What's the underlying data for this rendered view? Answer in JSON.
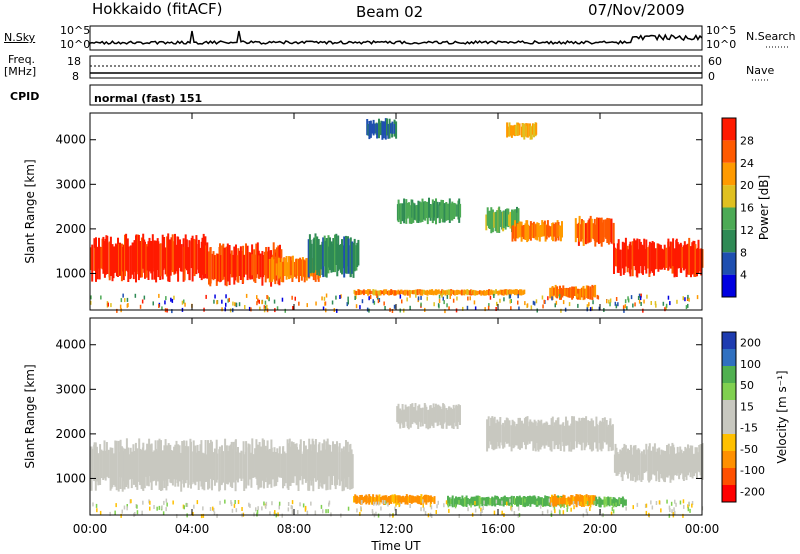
{
  "header": {
    "station": "Hokkaido (fitACF)",
    "beam": "Beam 02",
    "date": "07/Nov/2009"
  },
  "strip_labels": {
    "nsky": "N.Sky",
    "nsky_ticks": [
      "10^5",
      "10^0"
    ],
    "nsearch": "N.Search",
    "nsearch_ticks": [
      "10^5",
      "10^0"
    ],
    "freq": "Freq.",
    "freq_unit": "[MHz]",
    "freq_ticks": [
      "18",
      "8"
    ],
    "nave": "Nave",
    "nave_ticks": [
      "60",
      "0"
    ],
    "cpid": "CPID",
    "cpid_value": "normal (fast) 151"
  },
  "colors": {
    "power_scale": [
      "#0000e0",
      "#1e4fb0",
      "#2f8a55",
      "#4caa55",
      "#e0c020",
      "#ff9a00",
      "#ff5a00",
      "#ff1a00"
    ],
    "velocity_scale": [
      "#ff0000",
      "#ff5000",
      "#ff9000",
      "#ffc000",
      "#c8c8c0",
      "#c8c8c0",
      "#80d050",
      "#50b050",
      "#3070c0",
      "#1e3cb0"
    ]
  },
  "chart_data": [
    {
      "type": "heatmap",
      "name": "power",
      "ylabel": "Slant Range [km]",
      "yticks": [
        1000,
        2000,
        3000,
        4000
      ],
      "ylim": [
        180,
        4600
      ],
      "xlim_hours": [
        0,
        24
      ],
      "colorbar_label": "Power [dB]",
      "colorbar_ticks": [
        4,
        8,
        12,
        16,
        20,
        24,
        28
      ],
      "colorbar_range": [
        0,
        32
      ],
      "patches": [
        {
          "t0": 0.0,
          "t1": 4.5,
          "r0": 800,
          "r1": 1900,
          "level": 30
        },
        {
          "t0": 4.5,
          "t1": 7.5,
          "r0": 700,
          "r1": 1700,
          "level": 28
        },
        {
          "t0": 7.0,
          "t1": 9.0,
          "r0": 800,
          "r1": 1400,
          "level": 24
        },
        {
          "t0": 8.5,
          "t1": 10.5,
          "r0": 900,
          "r1": 1900,
          "level": 10
        },
        {
          "t0": 10.3,
          "t1": 17.0,
          "r0": 500,
          "r1": 650,
          "level": 22
        },
        {
          "t0": 12.0,
          "t1": 14.5,
          "r0": 2100,
          "r1": 2700,
          "level": 12
        },
        {
          "t0": 15.5,
          "t1": 16.8,
          "r0": 1900,
          "r1": 2500,
          "level": 14
        },
        {
          "t0": 16.5,
          "t1": 18.5,
          "r0": 1700,
          "r1": 2200,
          "level": 24
        },
        {
          "t0": 18.0,
          "t1": 19.8,
          "r0": 400,
          "r1": 750,
          "level": 24
        },
        {
          "t0": 19.0,
          "t1": 20.5,
          "r0": 1600,
          "r1": 2300,
          "level": 26
        },
        {
          "t0": 20.5,
          "t1": 24.0,
          "r0": 900,
          "r1": 1800,
          "level": 30
        },
        {
          "t0": 10.8,
          "t1": 12.0,
          "r0": 4000,
          "r1": 4500,
          "level": 8
        },
        {
          "t0": 16.3,
          "t1": 17.5,
          "r0": 4000,
          "r1": 4400,
          "level": 20
        }
      ]
    },
    {
      "type": "heatmap",
      "name": "velocity",
      "ylabel": "Slant Range [km]",
      "yticks": [
        1000,
        2000,
        3000,
        4000
      ],
      "ylim": [
        180,
        4600
      ],
      "xlim_hours": [
        0,
        24
      ],
      "xticks": [
        "00:00",
        "04:00",
        "08:00",
        "12:00",
        "16:00",
        "20:00",
        "00:00"
      ],
      "xlabel": "Time UT",
      "colorbar_label": "Velocity [m s⁻¹]",
      "colorbar_ticks": [
        200,
        100,
        50,
        15,
        -15,
        -50,
        -100,
        -200
      ],
      "patches": [
        {
          "t0": 0.0,
          "t1": 10.3,
          "r0": 700,
          "r1": 1900,
          "vel": 0
        },
        {
          "t0": 10.3,
          "t1": 13.5,
          "r0": 400,
          "r1": 650,
          "vel": -60
        },
        {
          "t0": 12.0,
          "t1": 14.5,
          "r0": 2100,
          "r1": 2700,
          "vel": 0
        },
        {
          "t0": 14.0,
          "t1": 18.5,
          "r0": 350,
          "r1": 620,
          "vel": 60
        },
        {
          "t0": 18.0,
          "t1": 19.8,
          "r0": 350,
          "r1": 650,
          "vel": -60
        },
        {
          "t0": 19.8,
          "t1": 21.0,
          "r0": 350,
          "r1": 600,
          "vel": 60
        },
        {
          "t0": 15.5,
          "t1": 20.5,
          "r0": 1600,
          "r1": 2400,
          "vel": 0
        },
        {
          "t0": 20.5,
          "t1": 24.0,
          "r0": 900,
          "r1": 1800,
          "vel": 0
        }
      ]
    }
  ]
}
